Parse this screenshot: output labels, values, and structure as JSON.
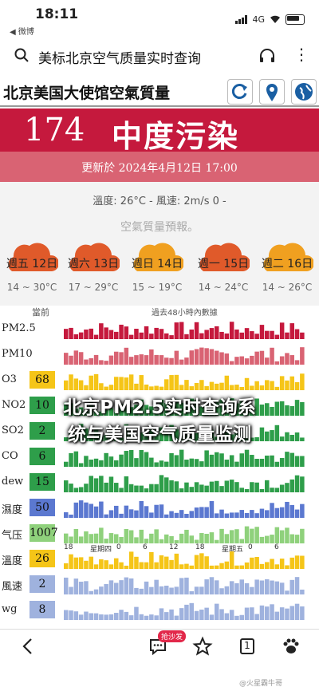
{
  "status": {
    "time": "18:11",
    "back_app": "◀ 微博",
    "network": "4G"
  },
  "search": {
    "title": "美标北京空气质量实时查询"
  },
  "site": {
    "title": "北京美国大使馆空氣質量"
  },
  "aqi": {
    "value": "174",
    "level": "中度污染",
    "updated": "更新於 2024年4月12日 17:00",
    "color": "#c5193d"
  },
  "weather": {
    "text": "溫度: 26°C - 風速: 2m/s 0 -"
  },
  "forecast": {
    "title": "空氣質量預報。",
    "days": [
      {
        "label": "週五 12日",
        "range": "14 ~ 30°C",
        "color": "#e05a2a"
      },
      {
        "label": "週六 13日",
        "range": "17 ~ 29°C",
        "color": "#e05a2a"
      },
      {
        "label": "週日 14日",
        "range": "15 ~ 19°C",
        "color": "#f0a020"
      },
      {
        "label": "週一 15日",
        "range": "14 ~ 24°C",
        "color": "#e05a2a"
      },
      {
        "label": "週二 16日",
        "range": "14 ~ 26°C",
        "color": "#f0a020"
      }
    ]
  },
  "table": {
    "header_current": "當前",
    "header_history": "過去48小時內數據",
    "rows": [
      {
        "label": "PM2.5",
        "value": "",
        "color": "#c5193d"
      },
      {
        "label": "PM10",
        "value": "",
        "color": "#d96373"
      },
      {
        "label": "O3",
        "value": "68",
        "color": "#f5c518"
      },
      {
        "label": "NO2",
        "value": "10",
        "color": "#2e9e4a"
      },
      {
        "label": "SO2",
        "value": "2",
        "color": "#2e9e4a"
      },
      {
        "label": "CO",
        "value": "6",
        "color": "#2e9e4a"
      },
      {
        "label": "dew",
        "value": "15",
        "color": "#2e9e4a"
      },
      {
        "label": "濕度",
        "value": "50",
        "color": "#5b78d0"
      },
      {
        "label": "气压",
        "value": "1007",
        "color": "#8fd17c"
      },
      {
        "label": "溫度",
        "value": "26",
        "color": "#f5c518"
      },
      {
        "label": "風速",
        "value": "2",
        "color": "#9fb2de"
      },
      {
        "label": "wg",
        "value": "8",
        "color": "#9fb2de"
      }
    ],
    "marks": [
      "18",
      "星期四",
      "0",
      "6",
      "12",
      "18",
      "星期五",
      "0",
      "6"
    ]
  },
  "overlay": {
    "line1": "北京PM2.5实时查询系",
    "line2": "统与美国空气质量监测"
  },
  "bottom": {
    "badge": "抢沙发",
    "share_count": "1",
    "watermark": "@火星霸牛哥"
  }
}
